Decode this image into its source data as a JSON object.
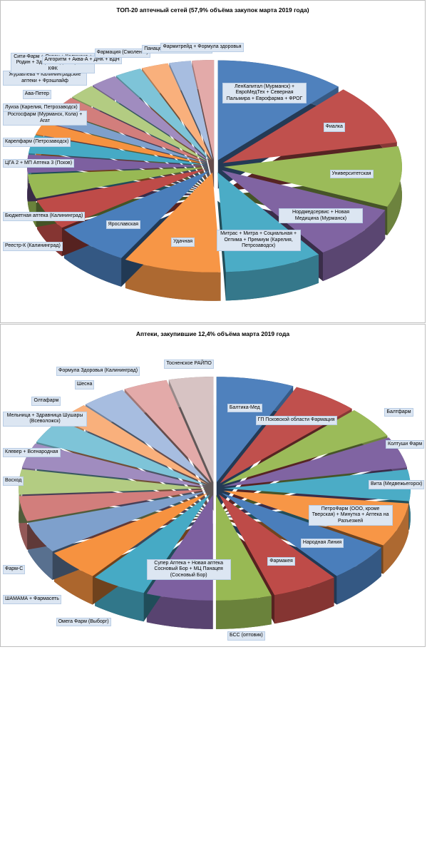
{
  "chart_data": [
    {
      "type": "pie3d",
      "title": "ТОП-20 аптечный сетей (57,9% объёма закупок марта 2019 года)",
      "categories": [
        "ЛенКапитал (Мурманск) + ЕвроМедТех + Северная Пальмира + Еврофарма + ФРОГ",
        "Фиалка",
        "Университетская",
        "Нордмедсервис + Новая Медицина (Мурманск)",
        "Митрас + Митра + Социальная + Оптима + Премиум (Карелия, Петрозаводск)",
        "Удачная",
        "Ярославская",
        "Реестр-К (Калининград)",
        "Бюджетная аптека (Калининград)",
        "ЦГА 2 + МП Аптека 3 (Псков)",
        "Карелфарм (Петрозаводск)",
        "Роcгосфарм (Мурманск, Кола) + Агат",
        "Луиза (Карелия, Петрозаводск)",
        "Ава-Петер",
        "Журавлева + Калининградские аптеки + Фрэшлайф",
        "Сити-Фарм + Океан + Калинина + Родин + Здоровье Димитрова + КФК",
        "Алгоритм + Аква-А + ДНК + ВДН",
        "Фармация (Смоленск)",
        "Панацея- 1,2,Н (В.Новгород)",
        "Фармитрейд + Формула здоровья"
      ],
      "values": [
        12,
        10,
        10,
        9,
        9,
        9,
        7,
        5,
        4,
        3,
        3,
        2,
        2,
        2.5,
        2.5,
        2.5,
        2.5,
        2.5,
        2,
        2
      ],
      "colors": [
        "#4f81bd",
        "#c0504d",
        "#9bbb59",
        "#8064a2",
        "#4bacc6",
        "#f79646",
        "#4a7ebb",
        "#be4b48",
        "#98b954",
        "#7d60a0",
        "#46aac5",
        "#f69240",
        "#7ea0cc",
        "#d27e7c",
        "#b3cc82",
        "#a08cbf",
        "#7ec4d8",
        "#f9b07c",
        "#a7bde0",
        "#e3aaa9"
      ]
    },
    {
      "type": "pie3d",
      "title": "Аптеки, закупившие 12,4% объёма марта 2019 года",
      "categories": [
        "Балтика-Мед",
        "ГП Псковской области Фармация",
        "Балтфарм",
        "Колтуши Фарм",
        "Вита (Медвежьегорск)",
        "ПетроФарм (ООО, кроме Тверская) + Минутка + Аптека на Разъезжей",
        "Народная Линия",
        "Фармакея",
        "БСС (оптовик)",
        "Супер Аптека + Новая аптека Сосновый Бор + МЦ Панацея (Сосновый Бор)",
        "Омега Фарм (Выборг)",
        "ШАМАМА + Фармасеть",
        "Фарм-С",
        null,
        "Восход",
        "Клевер + Всенародная",
        "Мельница + Здравница Шушары (Всеволожск)",
        "Олтафарм",
        "Шесна",
        "Формула Здоровья (Калининград)",
        "Тосненское РАЙПО"
      ],
      "values": [
        7,
        6,
        5,
        5,
        5,
        7,
        6,
        6,
        5,
        6,
        5,
        5,
        5,
        4,
        4,
        4,
        4,
        3,
        4,
        4,
        4
      ],
      "colors": [
        "#4f81bd",
        "#c0504d",
        "#9bbb59",
        "#8064a2",
        "#4bacc6",
        "#f79646",
        "#4a7ebb",
        "#be4b48",
        "#98b954",
        "#7d60a0",
        "#46aac5",
        "#f69240",
        "#7ea0cc",
        "#d27e7c",
        "#b3cc82",
        "#a08cbf",
        "#7ec4d8",
        "#f9b07c",
        "#a7bde0",
        "#e3aaa9",
        "#d7c3c3"
      ]
    }
  ]
}
